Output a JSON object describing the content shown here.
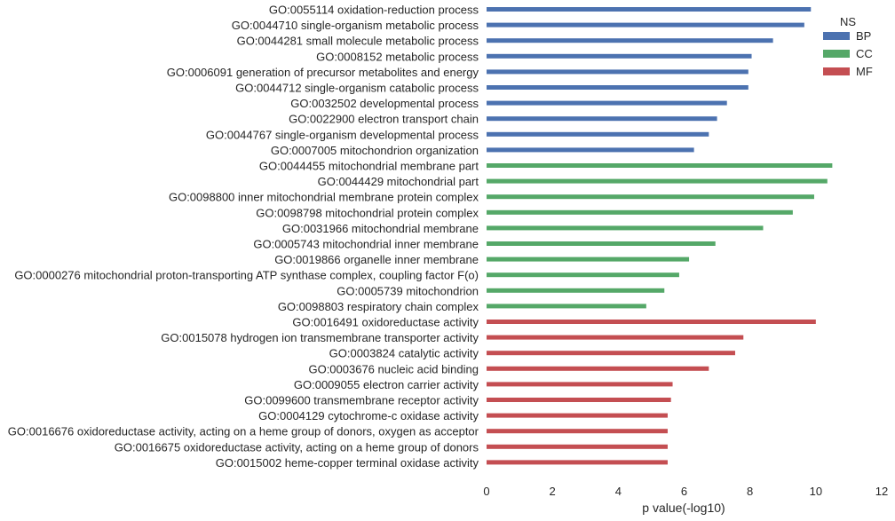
{
  "chart_data": {
    "type": "bar",
    "orientation": "horizontal",
    "xlabel": "p value(-log10)",
    "xlim": [
      0,
      12
    ],
    "xticks": [
      0,
      2,
      4,
      6,
      8,
      10,
      12
    ],
    "grid": false,
    "legend": {
      "title": "NS",
      "position": "top-right",
      "items": [
        {
          "name": "BP",
          "color": "#4c72b0"
        },
        {
          "name": "CC",
          "color": "#55a868"
        },
        {
          "name": "MF",
          "color": "#c44e52"
        }
      ]
    },
    "bars": [
      {
        "label": "GO:0055114 oxidation-reduction process",
        "value": 9.85,
        "ns": "BP"
      },
      {
        "label": "GO:0044710 single-organism metabolic process",
        "value": 9.65,
        "ns": "BP"
      },
      {
        "label": "GO:0044281 small molecule metabolic process",
        "value": 8.7,
        "ns": "BP"
      },
      {
        "label": "GO:0008152 metabolic process",
        "value": 8.05,
        "ns": "BP"
      },
      {
        "label": "GO:0006091 generation of precursor metabolites and energy",
        "value": 7.95,
        "ns": "BP"
      },
      {
        "label": "GO:0044712 single-organism catabolic process",
        "value": 7.95,
        "ns": "BP"
      },
      {
        "label": "GO:0032502 developmental process",
        "value": 7.3,
        "ns": "BP"
      },
      {
        "label": "GO:0022900 electron transport chain",
        "value": 7.0,
        "ns": "BP"
      },
      {
        "label": "GO:0044767 single-organism developmental process",
        "value": 6.75,
        "ns": "BP"
      },
      {
        "label": "GO:0007005 mitochondrion organization",
        "value": 6.3,
        "ns": "BP"
      },
      {
        "label": "GO:0044455 mitochondrial membrane part",
        "value": 10.5,
        "ns": "CC"
      },
      {
        "label": "GO:0044429 mitochondrial part",
        "value": 10.35,
        "ns": "CC"
      },
      {
        "label": "GO:0098800 inner mitochondrial membrane protein complex",
        "value": 9.95,
        "ns": "CC"
      },
      {
        "label": "GO:0098798 mitochondrial protein complex",
        "value": 9.3,
        "ns": "CC"
      },
      {
        "label": "GO:0031966 mitochondrial membrane",
        "value": 8.4,
        "ns": "CC"
      },
      {
        "label": "GO:0005743 mitochondrial inner membrane",
        "value": 6.95,
        "ns": "CC"
      },
      {
        "label": "GO:0019866 organelle inner membrane",
        "value": 6.15,
        "ns": "CC"
      },
      {
        "label": "GO:0000276 mitochondrial proton-transporting ATP synthase complex, coupling factor F(o)",
        "value": 5.85,
        "ns": "CC"
      },
      {
        "label": "GO:0005739 mitochondrion",
        "value": 5.4,
        "ns": "CC"
      },
      {
        "label": "GO:0098803 respiratory chain complex",
        "value": 4.85,
        "ns": "CC"
      },
      {
        "label": "GO:0016491 oxidoreductase activity",
        "value": 10.0,
        "ns": "MF"
      },
      {
        "label": "GO:0015078 hydrogen ion transmembrane transporter activity",
        "value": 7.8,
        "ns": "MF"
      },
      {
        "label": "GO:0003824 catalytic activity",
        "value": 7.55,
        "ns": "MF"
      },
      {
        "label": "GO:0003676 nucleic acid binding",
        "value": 6.75,
        "ns": "MF"
      },
      {
        "label": "GO:0009055 electron carrier activity",
        "value": 5.65,
        "ns": "MF"
      },
      {
        "label": "GO:0099600 transmembrane receptor activity",
        "value": 5.6,
        "ns": "MF"
      },
      {
        "label": "GO:0004129 cytochrome-c oxidase activity",
        "value": 5.5,
        "ns": "MF"
      },
      {
        "label": "GO:0016676 oxidoreductase activity, acting on a heme group of donors, oxygen as acceptor",
        "value": 5.5,
        "ns": "MF"
      },
      {
        "label": "GO:0016675 oxidoreductase activity, acting on a heme group of donors",
        "value": 5.5,
        "ns": "MF"
      },
      {
        "label": "GO:0015002 heme-copper terminal oxidase activity",
        "value": 5.5,
        "ns": "MF"
      }
    ]
  }
}
